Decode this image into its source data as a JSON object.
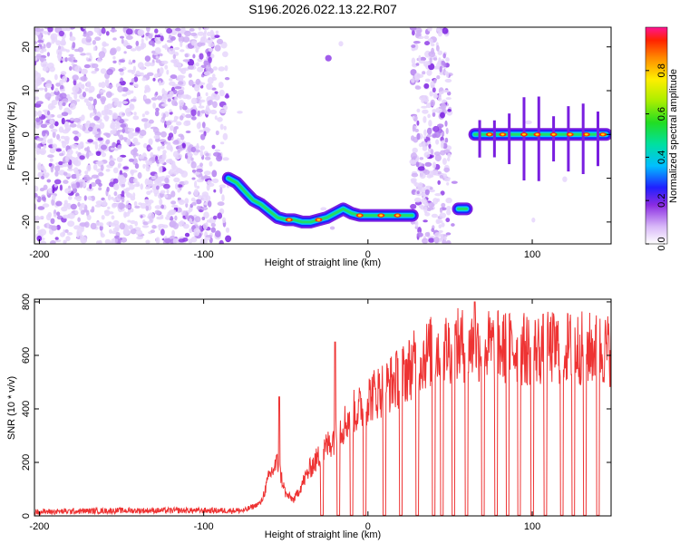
{
  "title": "S196.2026.022.13.22.R07",
  "chart_data": [
    {
      "type": "heatmap",
      "xlabel": "Height of straight line (km)",
      "ylabel": "Frequency (Hz)",
      "xlim": [
        -203,
        148
      ],
      "ylim": [
        -25,
        24.5
      ],
      "xticks": [
        -200,
        -100,
        0,
        100
      ],
      "yticks": [
        -20,
        -10,
        0,
        10,
        20
      ],
      "colorbar": {
        "label": "Normalized spectral amplitude",
        "range": [
          0,
          1
        ],
        "ticks": [
          0.0,
          0.2,
          0.4,
          0.6,
          0.8
        ]
      },
      "ridge": [
        {
          "x": -85,
          "y": -10
        },
        {
          "x": -80,
          "y": -11
        },
        {
          "x": -75,
          "y": -13
        },
        {
          "x": -70,
          "y": -15
        },
        {
          "x": -65,
          "y": -16
        },
        {
          "x": -60,
          "y": -17.5
        },
        {
          "x": -55,
          "y": -19
        },
        {
          "x": -50,
          "y": -19.5
        },
        {
          "x": -45,
          "y": -19.5
        },
        {
          "x": -40,
          "y": -20
        },
        {
          "x": -35,
          "y": -20
        },
        {
          "x": -30,
          "y": -19.5
        },
        {
          "x": -25,
          "y": -19
        },
        {
          "x": -20,
          "y": -18
        },
        {
          "x": -15,
          "y": -17
        },
        {
          "x": -10,
          "y": -18
        },
        {
          "x": -5,
          "y": -18.5
        },
        {
          "x": 0,
          "y": -18.5
        },
        {
          "x": 10,
          "y": -18.5
        },
        {
          "x": 20,
          "y": -18.5
        },
        {
          "x": 27,
          "y": -18.5
        },
        {
          "x": 55,
          "y": -17
        },
        {
          "x": 60,
          "y": -17
        },
        {
          "x": 65,
          "y": 0
        },
        {
          "x": 80,
          "y": 0
        },
        {
          "x": 100,
          "y": 0
        },
        {
          "x": 120,
          "y": 0
        },
        {
          "x": 145,
          "y": 0
        }
      ]
    },
    {
      "type": "line",
      "xlabel": "Height of straight line (km)",
      "ylabel": "SNR (10 * v/v)",
      "xlim": [
        -203,
        148
      ],
      "ylim": [
        0,
        810
      ],
      "xticks": [
        -200,
        -100,
        0,
        100
      ],
      "yticks": [
        0,
        200,
        400,
        600,
        800
      ],
      "series": [
        {
          "name": "SNR",
          "color": "#ee3333",
          "envelope": [
            {
              "x": -203,
              "y": 15
            },
            {
              "x": -150,
              "y": 20
            },
            {
              "x": -75,
              "y": 20
            },
            {
              "x": -65,
              "y": 50
            },
            {
              "x": -60,
              "y": 150
            },
            {
              "x": -55,
              "y": 200
            },
            {
              "x": -50,
              "y": 80
            },
            {
              "x": -45,
              "y": 60
            },
            {
              "x": -40,
              "y": 120
            },
            {
              "x": -35,
              "y": 180
            },
            {
              "x": -30,
              "y": 220
            },
            {
              "x": -25,
              "y": 260
            },
            {
              "x": -20,
              "y": 300
            },
            {
              "x": -15,
              "y": 340
            },
            {
              "x": -10,
              "y": 380
            },
            {
              "x": -5,
              "y": 400
            },
            {
              "x": 0,
              "y": 440
            },
            {
              "x": 10,
              "y": 480
            },
            {
              "x": 20,
              "y": 520
            },
            {
              "x": 30,
              "y": 580
            },
            {
              "x": 40,
              "y": 620
            },
            {
              "x": 60,
              "y": 640
            },
            {
              "x": 80,
              "y": 630
            },
            {
              "x": 100,
              "y": 620
            },
            {
              "x": 120,
              "y": 630
            },
            {
              "x": 148,
              "y": 620
            }
          ],
          "spikes": [
            {
              "x": -54,
              "y": 445
            },
            {
              "x": -20,
              "y": 650
            },
            {
              "x": 65,
              "y": 800
            }
          ],
          "dropouts": [
            -28,
            -18,
            -10,
            -2,
            10,
            20,
            30,
            40,
            45,
            52,
            60,
            70,
            78,
            85,
            92,
            100,
            108,
            118,
            125,
            132,
            140
          ]
        }
      ]
    }
  ]
}
